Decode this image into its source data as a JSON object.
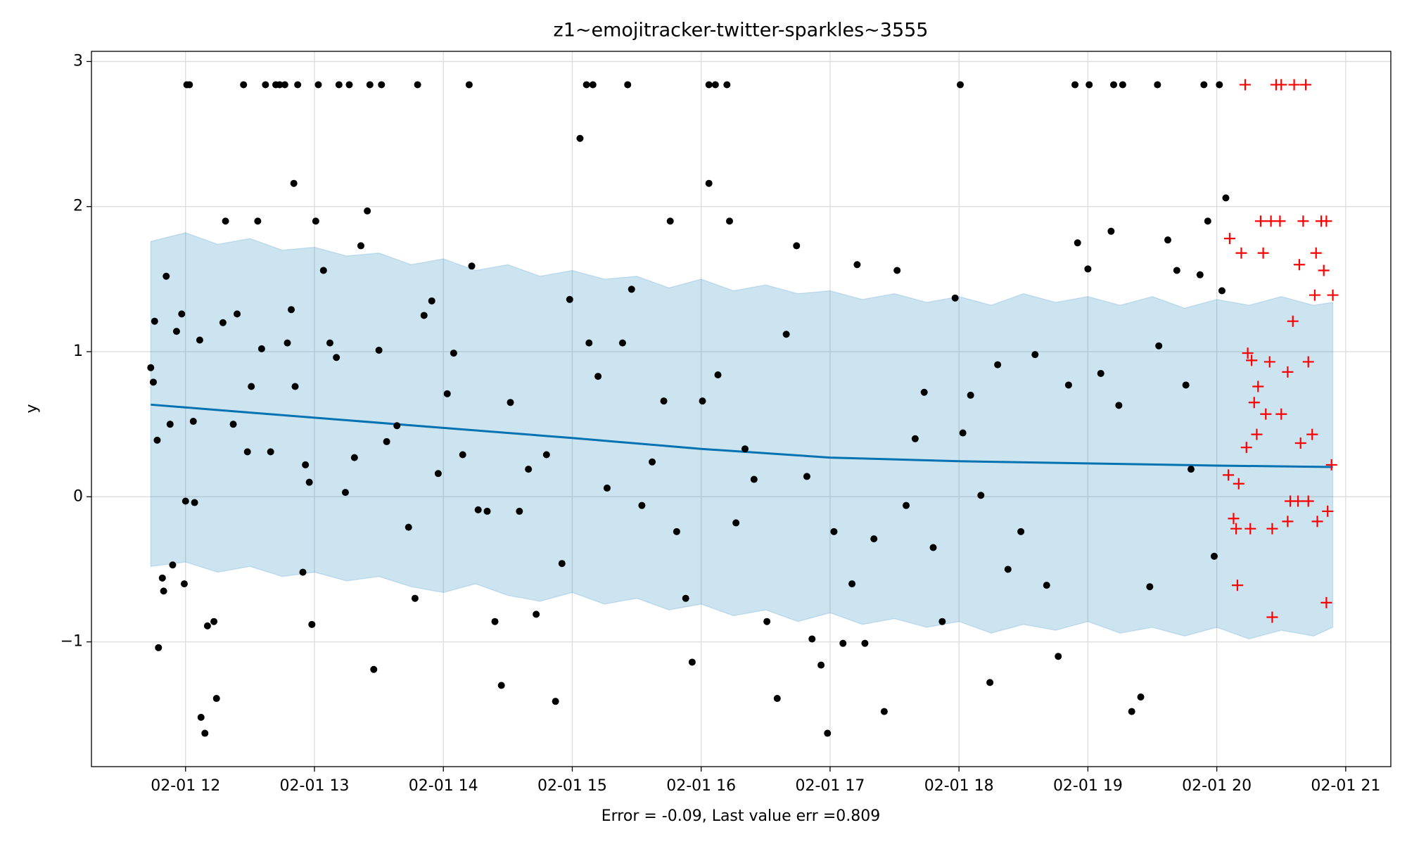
{
  "chart_data": {
    "type": "line",
    "title": "z1~emojitracker-twitter-sparkles~3555",
    "xlabel": "Error = -0.09, Last value err =0.809",
    "ylabel": "y",
    "xlim": [
      11.27,
      21.35
    ],
    "ylim": [
      -1.86,
      3.07
    ],
    "grid": true,
    "xticks": [
      {
        "value": 12,
        "label": "02-01 12"
      },
      {
        "value": 13,
        "label": "02-01 13"
      },
      {
        "value": 14,
        "label": "02-01 14"
      },
      {
        "value": 15,
        "label": "02-01 15"
      },
      {
        "value": 16,
        "label": "02-01 16"
      },
      {
        "value": 17,
        "label": "02-01 17"
      },
      {
        "value": 18,
        "label": "02-01 18"
      },
      {
        "value": 19,
        "label": "02-01 19"
      },
      {
        "value": 20,
        "label": "02-01 20"
      },
      {
        "value": 21,
        "label": "02-01 21"
      }
    ],
    "yticks": [
      {
        "value": -1,
        "label": "−1"
      },
      0,
      1,
      2,
      3
    ],
    "series": [
      {
        "type": "band",
        "color": "#0072b2",
        "x": [
          11.73,
          12.0,
          12.25,
          12.5,
          12.75,
          13.0,
          13.25,
          13.5,
          13.75,
          14.0,
          14.25,
          14.5,
          14.75,
          15.0,
          15.25,
          15.5,
          15.75,
          16.0,
          16.25,
          16.5,
          16.75,
          17.0,
          17.25,
          17.5,
          17.75,
          18.0,
          18.25,
          18.5,
          18.75,
          19.0,
          19.25,
          19.5,
          19.75,
          20.0,
          20.25,
          20.5,
          20.75,
          20.9
        ],
        "upper": [
          1.76,
          1.82,
          1.74,
          1.78,
          1.7,
          1.72,
          1.66,
          1.68,
          1.6,
          1.64,
          1.56,
          1.6,
          1.52,
          1.56,
          1.5,
          1.52,
          1.44,
          1.5,
          1.42,
          1.46,
          1.4,
          1.42,
          1.36,
          1.4,
          1.34,
          1.38,
          1.32,
          1.4,
          1.34,
          1.38,
          1.32,
          1.38,
          1.3,
          1.36,
          1.32,
          1.38,
          1.32,
          1.34
        ],
        "lower": [
          -0.48,
          -0.45,
          -0.52,
          -0.48,
          -0.55,
          -0.52,
          -0.58,
          -0.55,
          -0.62,
          -0.66,
          -0.6,
          -0.68,
          -0.72,
          -0.66,
          -0.74,
          -0.7,
          -0.78,
          -0.74,
          -0.82,
          -0.78,
          -0.86,
          -0.8,
          -0.88,
          -0.84,
          -0.9,
          -0.86,
          -0.94,
          -0.88,
          -0.92,
          -0.86,
          -0.94,
          -0.9,
          -0.96,
          -0.9,
          -0.98,
          -0.92,
          -0.96,
          -0.9
        ]
      },
      {
        "type": "line",
        "color": "#0072b2",
        "x": [
          11.73,
          12.5,
          13.0,
          14.0,
          15.0,
          16.0,
          17.0,
          18.0,
          19.0,
          20.0,
          20.9
        ],
        "values": [
          0.635,
          0.58,
          0.545,
          0.475,
          0.405,
          0.33,
          0.27,
          0.245,
          0.23,
          0.215,
          0.205
        ]
      },
      {
        "type": "scatter",
        "marker": "dot",
        "color": "#000000",
        "x": [
          12.01,
          12.03,
          12.45,
          12.62,
          12.7,
          12.73,
          12.77,
          12.87,
          13.03,
          13.19,
          13.27,
          13.43,
          13.52,
          13.8,
          14.2,
          15.11,
          15.16,
          15.43,
          16.06,
          16.11,
          16.2,
          18.01,
          18.9,
          19.01,
          19.2,
          19.27,
          19.54,
          19.9,
          20.02,
          11.73,
          11.75,
          11.76,
          11.78,
          11.79,
          11.82,
          11.83,
          11.85,
          11.88,
          11.9,
          11.93,
          11.97,
          11.99,
          12.0,
          12.06,
          12.07,
          12.11,
          12.12,
          12.15,
          12.17,
          12.22,
          12.24,
          12.29,
          12.31,
          12.37,
          12.4,
          12.48,
          12.51,
          12.56,
          12.59,
          12.66,
          12.79,
          12.82,
          12.84,
          12.85,
          12.91,
          12.93,
          12.96,
          12.98,
          13.01,
          13.07,
          13.12,
          13.17,
          13.24,
          13.31,
          13.36,
          13.41,
          13.46,
          13.5,
          13.56,
          13.64,
          13.73,
          13.78,
          13.85,
          13.91,
          13.96,
          14.03,
          14.08,
          14.15,
          14.22,
          14.27,
          14.34,
          14.4,
          14.45,
          14.52,
          14.59,
          14.66,
          14.72,
          14.8,
          14.87,
          14.92,
          14.98,
          15.06,
          15.13,
          15.2,
          15.27,
          15.39,
          15.46,
          15.54,
          15.62,
          15.71,
          15.76,
          15.81,
          15.88,
          15.93,
          16.01,
          16.06,
          16.13,
          16.22,
          16.27,
          16.34,
          16.41,
          16.51,
          16.59,
          16.66,
          16.74,
          16.82,
          16.86,
          16.93,
          16.98,
          17.03,
          17.1,
          17.17,
          17.21,
          17.27,
          17.34,
          17.42,
          17.52,
          17.59,
          17.66,
          17.73,
          17.8,
          17.87,
          17.97,
          18.03,
          18.09,
          18.17,
          18.24,
          18.3,
          18.38,
          18.48,
          18.59,
          18.68,
          18.77,
          18.85,
          18.92,
          19.0,
          19.1,
          19.18,
          19.24,
          19.34,
          19.41,
          19.48,
          19.55,
          19.62,
          19.69,
          19.76,
          19.8,
          19.87,
          19.93,
          19.98,
          20.04,
          20.07
        ],
        "values": [
          2.84,
          2.84,
          2.84,
          2.84,
          2.84,
          2.84,
          2.84,
          2.84,
          2.84,
          2.84,
          2.84,
          2.84,
          2.84,
          2.84,
          2.84,
          2.84,
          2.84,
          2.84,
          2.84,
          2.84,
          2.84,
          2.84,
          2.84,
          2.84,
          2.84,
          2.84,
          2.84,
          2.84,
          2.84,
          0.89,
          0.79,
          1.21,
          0.39,
          -1.04,
          -0.56,
          -0.65,
          1.52,
          0.5,
          -0.47,
          1.14,
          1.26,
          -0.6,
          -0.03,
          0.52,
          -0.04,
          1.08,
          -1.52,
          -1.63,
          -0.89,
          -0.86,
          -1.39,
          1.2,
          1.9,
          0.5,
          1.26,
          0.31,
          0.76,
          1.9,
          1.02,
          0.31,
          1.06,
          1.29,
          2.16,
          0.76,
          -0.52,
          0.22,
          0.1,
          -0.88,
          1.9,
          1.56,
          1.06,
          0.96,
          0.03,
          0.27,
          1.73,
          1.97,
          -1.19,
          1.01,
          0.38,
          0.49,
          -0.21,
          -0.7,
          1.25,
          1.35,
          0.16,
          0.71,
          0.99,
          0.29,
          1.59,
          -0.09,
          -0.1,
          -0.86,
          -1.3,
          0.65,
          -0.1,
          0.19,
          -0.81,
          0.29,
          -1.41,
          -0.46,
          1.36,
          2.47,
          1.06,
          0.83,
          0.06,
          1.06,
          1.43,
          -0.06,
          0.24,
          0.66,
          1.9,
          -0.24,
          -0.7,
          -1.14,
          0.66,
          2.16,
          0.84,
          1.9,
          -0.18,
          0.33,
          0.12,
          -0.86,
          -1.39,
          1.12,
          1.73,
          0.14,
          -0.98,
          -1.16,
          -1.63,
          -0.24,
          -1.01,
          -0.6,
          1.6,
          -1.01,
          -0.29,
          -1.48,
          1.56,
          -0.06,
          0.4,
          0.72,
          -0.35,
          -0.86,
          1.37,
          0.44,
          0.7,
          0.01,
          -1.28,
          0.91,
          -0.5,
          -0.24,
          0.98,
          -0.61,
          -1.1,
          0.77,
          1.75,
          1.57,
          0.85,
          1.83,
          0.63,
          -1.48,
          -1.38,
          -0.62,
          1.04,
          1.77,
          1.56,
          0.77,
          0.19,
          1.53,
          1.9,
          -0.41,
          1.42,
          2.06
        ]
      },
      {
        "type": "scatter",
        "marker": "plus",
        "color": "#ff0000",
        "x": [
          20.22,
          20.46,
          20.5,
          20.6,
          20.69,
          20.1,
          20.19,
          20.34,
          20.42,
          20.49,
          20.67,
          20.81,
          20.85,
          20.36,
          20.64,
          20.77,
          20.83,
          20.76,
          20.9,
          20.59,
          20.24,
          20.27,
          20.41,
          20.71,
          20.55,
          20.32,
          20.29,
          20.38,
          20.5,
          20.31,
          20.74,
          20.65,
          20.23,
          20.89,
          20.09,
          20.17,
          20.57,
          20.63,
          20.71,
          20.86,
          20.13,
          20.15,
          20.26,
          20.43,
          20.55,
          20.78,
          20.16,
          20.85,
          20.43
        ],
        "values": [
          2.84,
          2.84,
          2.84,
          2.84,
          2.84,
          1.78,
          1.68,
          1.9,
          1.9,
          1.9,
          1.9,
          1.9,
          1.9,
          1.68,
          1.6,
          1.68,
          1.56,
          1.39,
          1.39,
          1.21,
          0.99,
          0.94,
          0.93,
          0.93,
          0.86,
          0.76,
          0.65,
          0.57,
          0.57,
          0.43,
          0.43,
          0.37,
          0.34,
          0.22,
          0.15,
          0.09,
          -0.03,
          -0.03,
          -0.03,
          -0.1,
          -0.15,
          -0.22,
          -0.22,
          -0.22,
          -0.17,
          -0.17,
          -0.61,
          -0.73,
          -0.83
        ]
      }
    ]
  }
}
